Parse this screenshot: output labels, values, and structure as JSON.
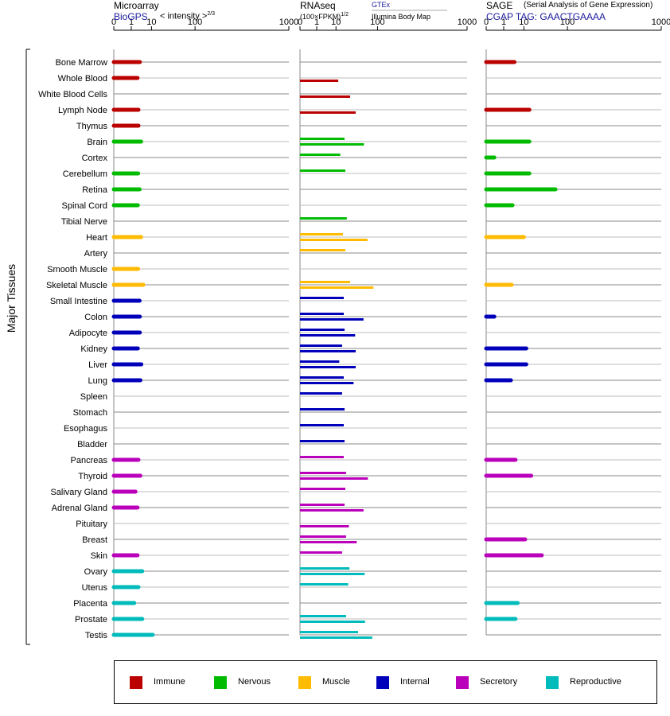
{
  "headers": {
    "microarray": {
      "title": "Microarray",
      "source": "BioGPS",
      "unit": "< intensity >",
      "unit_sup": "2/3"
    },
    "rnaseq": {
      "title": "RNAseq",
      "unit": "(100×FPKM)",
      "unit_sup": "1/2",
      "source1": "GTEx",
      "source2": "Illumina Body Map"
    },
    "sage": {
      "title": "SAGE",
      "subtitle": "(Serial Analysis of Gene Expression)",
      "tag": "CGAP  TAG: GAACTGAAAA"
    }
  },
  "y_axis_label": "Major Tissues",
  "chart_data": {
    "type": "bar",
    "x_scale": "power",
    "x_ticks": [
      0,
      1,
      10,
      100,
      1000
    ],
    "tissues": [
      "Bone Marrow",
      "Whole Blood",
      "White Blood Cells",
      "Lymph Node",
      "Thymus",
      "Brain",
      "Cortex",
      "Cerebellum",
      "Retina",
      "Spinal Cord",
      "Tibial Nerve",
      "Heart",
      "Artery",
      "Smooth Muscle",
      "Skeletal Muscle",
      "Small Intestine",
      "Colon",
      "Adipocyte",
      "Kidney",
      "Liver",
      "Lung",
      "Spleen",
      "Stomach",
      "Esophagus",
      "Bladder",
      "Pancreas",
      "Thyroid",
      "Salivary Gland",
      "Adrenal Gland",
      "Pituitary",
      "Breast",
      "Skin",
      "Ovary",
      "Uterus",
      "Placenta",
      "Prostate",
      "Testis"
    ],
    "groups": [
      "Immune",
      "Immune",
      "Immune",
      "Immune",
      "Immune",
      "Nervous",
      "Nervous",
      "Nervous",
      "Nervous",
      "Nervous",
      "Nervous",
      "Muscle",
      "Muscle",
      "Muscle",
      "Muscle",
      "Internal",
      "Internal",
      "Internal",
      "Internal",
      "Internal",
      "Internal",
      "Internal",
      "Internal",
      "Internal",
      "Internal",
      "Secretory",
      "Secretory",
      "Secretory",
      "Secretory",
      "Secretory",
      "Secretory",
      "Secretory",
      "Reproductive",
      "Reproductive",
      "Reproductive",
      "Reproductive",
      "Reproductive"
    ],
    "microarray": [
      3.3,
      2.5,
      null,
      2.8,
      2.8,
      3.8,
      null,
      2.7,
      3.2,
      2.6,
      null,
      3.8,
      null,
      2.7,
      4.8,
      3.2,
      3.3,
      3.3,
      2.6,
      3.9,
      3.5,
      null,
      null,
      null,
      null,
      2.8,
      3.5,
      1.9,
      2.5,
      null,
      null,
      2.5,
      4.3,
      2.8,
      1.6,
      4.3,
      11
    ],
    "rnaseq_gtex": [
      null,
      null,
      null,
      null,
      null,
      19,
      14,
      20,
      null,
      null,
      22,
      17,
      20,
      null,
      27,
      18,
      18,
      19,
      16,
      13,
      18,
      16,
      19,
      18,
      19,
      18,
      21,
      20,
      19,
      null,
      21,
      16,
      26,
      24,
      null,
      21,
      42
    ],
    "rnaseq_ibm": [
      null,
      12,
      27,
      37,
      null,
      56,
      null,
      null,
      null,
      null,
      null,
      66,
      null,
      null,
      85,
      null,
      55,
      36,
      37,
      37,
      33,
      null,
      null,
      null,
      null,
      null,
      67,
      null,
      55,
      25,
      39,
      null,
      58,
      null,
      null,
      59,
      81
    ],
    "sage": [
      4.2,
      null,
      null,
      15,
      null,
      15,
      0.1,
      15,
      62,
      3.4,
      null,
      10,
      null,
      null,
      3.1,
      null,
      0.1,
      null,
      12,
      12,
      2.8,
      null,
      null,
      null,
      null,
      4.7,
      17,
      null,
      null,
      null,
      11,
      32,
      null,
      null,
      5.8,
      4.7,
      null
    ]
  },
  "legend": [
    {
      "name": "Immune",
      "color": "#bb0000"
    },
    {
      "name": "Nervous",
      "color": "#00bb00"
    },
    {
      "name": "Muscle",
      "color": "#ffbb00"
    },
    {
      "name": "Internal",
      "color": "#0000bb"
    },
    {
      "name": "Secretory",
      "color": "#bb00bb"
    },
    {
      "name": "Reproductive",
      "color": "#00bbbb"
    }
  ]
}
